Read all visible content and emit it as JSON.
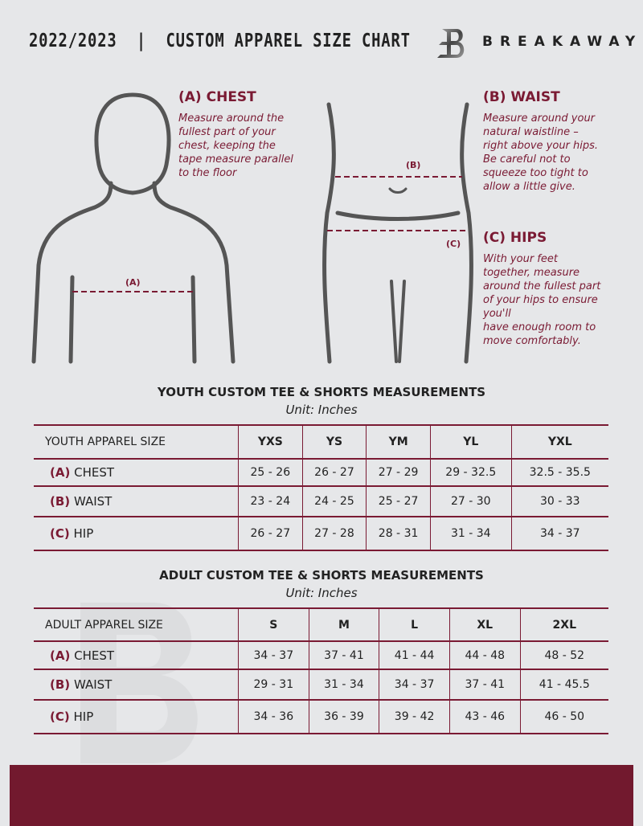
{
  "header": {
    "title": "2022/2023  |  CUSTOM APPAREL SIZE CHART",
    "brand": "BREAKAWAY",
    "logo_letter": "B"
  },
  "guide": {
    "chest": {
      "heading": "(A) CHEST",
      "text": [
        "Measure around the",
        "fullest part of your",
        "chest, keeping the",
        "tape measure parallel",
        "to the floor"
      ],
      "marker": "(A)"
    },
    "waist": {
      "heading": "(B) WAIST",
      "text": [
        "Measure around your",
        "natural waistline –",
        "right above your hips.",
        "Be careful not to",
        "squeeze too tight to",
        "allow a little give."
      ],
      "marker": "(B)"
    },
    "hips": {
      "heading": "(C) HIPS",
      "text": [
        "With your feet",
        "together, measure",
        "around the fullest part",
        "of your hips to ensure",
        "you'll",
        "have enough room to",
        "move comfortably."
      ],
      "marker": "(C)"
    }
  },
  "youth": {
    "title": "YOUTH CUSTOM TEE & SHORTS MEASUREMENTS",
    "unit": "Unit: Inches",
    "header": "YOUTH APPAREL SIZE",
    "sizes": [
      "YXS",
      "YS",
      "YM",
      "YL",
      "YXL"
    ],
    "rows": [
      {
        "letter": "(A)",
        "label": "CHEST",
        "values": [
          "25 - 26",
          "26 - 27",
          "27 - 29",
          "29 - 32.5",
          "32.5 - 35.5"
        ]
      },
      {
        "letter": "(B)",
        "label": "WAIST",
        "values": [
          "23 - 24",
          "24 - 25",
          "25 - 27",
          "27 - 30",
          "30 - 33"
        ]
      },
      {
        "letter": "(C)",
        "label": "HIP",
        "values": [
          "26 - 27",
          "27 - 28",
          "28 - 31",
          "31 - 34",
          "34 - 37"
        ]
      }
    ]
  },
  "adult": {
    "title": "ADULT CUSTOM TEE & SHORTS MEASUREMENTS",
    "unit": "Unit: Inches",
    "header": "ADULT APPAREL SIZE",
    "sizes": [
      "S",
      "M",
      "L",
      "XL",
      "2XL"
    ],
    "rows": [
      {
        "letter": "(A)",
        "label": "CHEST",
        "values": [
          "34 - 37",
          "37 - 41",
          "41 - 44",
          "44 - 48",
          "48 - 52"
        ]
      },
      {
        "letter": "(B)",
        "label": "WAIST",
        "values": [
          "29 - 31",
          "31 - 34",
          "34 - 37",
          "37 - 41",
          "41 - 45.5"
        ]
      },
      {
        "letter": "(C)",
        "label": "HIP",
        "values": [
          "34 - 36",
          "36 - 39",
          "39 - 42",
          "43 - 46",
          "46 - 50"
        ]
      }
    ]
  },
  "colors": {
    "accent": "#7a1a33",
    "footer": "#72192e",
    "background": "#e6e7e9"
  }
}
